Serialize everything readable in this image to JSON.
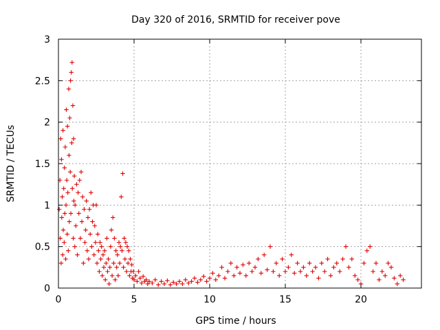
{
  "chart_data": {
    "type": "scatter",
    "title": "Day 320 of 2016, SRMTID for receiver pove",
    "xlabel": "GPS time / hours",
    "ylabel": "SRMTID / TECUs",
    "xlim": [
      0,
      24
    ],
    "ylim": [
      0,
      3
    ],
    "xticks": [
      "0",
      "5",
      "10",
      "15",
      "20"
    ],
    "xtick_values": [
      0,
      5,
      10,
      15,
      20
    ],
    "yticks": [
      "0",
      "0.5",
      "1",
      "1.5",
      "2",
      "2.5",
      "3"
    ],
    "ytick_values": [
      0,
      0.5,
      1,
      1.5,
      2,
      2.5,
      3
    ],
    "grid": true,
    "marker": "plus",
    "color": "#e00000",
    "series": [
      {
        "name": "",
        "points": [
          [
            0.05,
            0.95
          ],
          [
            0.1,
            1.3
          ],
          [
            0.12,
            0.6
          ],
          [
            0.15,
            1.8
          ],
          [
            0.18,
            0.3
          ],
          [
            0.2,
            1.55
          ],
          [
            0.22,
            0.85
          ],
          [
            0.25,
            1.1
          ],
          [
            0.28,
            0.4
          ],
          [
            0.3,
            1.9
          ],
          [
            0.32,
            0.7
          ],
          [
            0.35,
            1.2
          ],
          [
            0.38,
            0.55
          ],
          [
            0.4,
            1.45
          ],
          [
            0.42,
            0.9
          ],
          [
            0.45,
            1.7
          ],
          [
            0.48,
            0.35
          ],
          [
            0.5,
            1.0
          ],
          [
            0.52,
            2.15
          ],
          [
            0.55,
            1.3
          ],
          [
            0.58,
            0.65
          ],
          [
            0.6,
            1.95
          ],
          [
            0.62,
            1.15
          ],
          [
            0.65,
            0.45
          ],
          [
            0.68,
            2.4
          ],
          [
            0.7,
            1.6
          ],
          [
            0.72,
            0.8
          ],
          [
            0.75,
            2.05
          ],
          [
            0.78,
            1.4
          ],
          [
            0.8,
            2.5
          ],
          [
            0.82,
            0.9
          ],
          [
            0.85,
            2.6
          ],
          [
            0.88,
            1.75
          ],
          [
            0.9,
            2.72
          ],
          [
            0.92,
            1.2
          ],
          [
            0.95,
            2.2
          ],
          [
            0.98,
            0.6
          ],
          [
            1.0,
            1.8
          ],
          [
            1.02,
            1.05
          ],
          [
            1.05,
            1.35
          ],
          [
            1.08,
            0.5
          ],
          [
            1.1,
            1.0
          ],
          [
            1.15,
            0.75
          ],
          [
            1.2,
            1.25
          ],
          [
            1.25,
            0.4
          ],
          [
            1.3,
            1.15
          ],
          [
            1.35,
            0.9
          ],
          [
            1.4,
            1.3
          ],
          [
            1.45,
            0.6
          ],
          [
            1.5,
            1.4
          ],
          [
            1.55,
            0.8
          ],
          [
            1.6,
            1.1
          ],
          [
            1.65,
            0.3
          ],
          [
            1.7,
            0.95
          ],
          [
            1.75,
            0.55
          ],
          [
            1.8,
            0.7
          ],
          [
            1.85,
            1.05
          ],
          [
            1.9,
            0.45
          ],
          [
            1.95,
            0.85
          ],
          [
            2.0,
            0.35
          ],
          [
            2.05,
            0.95
          ],
          [
            2.1,
            0.65
          ],
          [
            2.15,
            1.15
          ],
          [
            2.2,
            0.5
          ],
          [
            2.25,
            0.8
          ],
          [
            2.3,
            1.0
          ],
          [
            2.35,
            0.4
          ],
          [
            2.4,
            0.75
          ],
          [
            2.45,
            0.55
          ],
          [
            2.5,
            1.0
          ],
          [
            2.55,
            0.3
          ],
          [
            2.6,
            0.65
          ],
          [
            2.65,
            0.45
          ],
          [
            2.7,
            0.2
          ],
          [
            2.75,
            0.55
          ],
          [
            2.8,
            0.35
          ],
          [
            2.85,
            0.5
          ],
          [
            2.9,
            0.15
          ],
          [
            2.95,
            0.4
          ],
          [
            3.0,
            0.25
          ],
          [
            3.05,
            0.45
          ],
          [
            3.1,
            0.1
          ],
          [
            3.15,
            0.3
          ],
          [
            3.2,
            0.6
          ],
          [
            3.25,
            0.2
          ],
          [
            3.3,
            0.35
          ],
          [
            3.35,
            0.05
          ],
          [
            3.4,
            0.25
          ],
          [
            3.45,
            0.5
          ],
          [
            3.5,
            0.7
          ],
          [
            3.55,
            0.15
          ],
          [
            3.6,
            0.85
          ],
          [
            3.65,
            0.3
          ],
          [
            3.7,
            0.6
          ],
          [
            3.75,
            0.1
          ],
          [
            3.8,
            0.45
          ],
          [
            3.85,
            0.25
          ],
          [
            3.9,
            0.4
          ],
          [
            3.95,
            0.15
          ],
          [
            4.0,
            0.55
          ],
          [
            4.05,
            0.3
          ],
          [
            4.1,
            0.5
          ],
          [
            4.15,
            1.1
          ],
          [
            4.2,
            0.45
          ],
          [
            4.25,
            1.38
          ],
          [
            4.3,
            0.25
          ],
          [
            4.35,
            0.6
          ],
          [
            4.4,
            0.35
          ],
          [
            4.45,
            0.55
          ],
          [
            4.5,
            0.2
          ],
          [
            4.55,
            0.5
          ],
          [
            4.6,
            0.3
          ],
          [
            4.65,
            0.45
          ],
          [
            4.7,
            0.15
          ],
          [
            4.75,
            0.35
          ],
          [
            4.8,
            0.2
          ],
          [
            4.85,
            0.28
          ],
          [
            4.9,
            0.12
          ],
          [
            4.95,
            0.2
          ],
          [
            5.0,
            0.1
          ],
          [
            5.1,
            0.15
          ],
          [
            5.2,
            0.08
          ],
          [
            5.3,
            0.2
          ],
          [
            5.4,
            0.12
          ],
          [
            5.5,
            0.06
          ],
          [
            5.6,
            0.14
          ],
          [
            5.7,
            0.08
          ],
          [
            5.8,
            0.1
          ],
          [
            5.9,
            0.05
          ],
          [
            6.0,
            0.08
          ],
          [
            6.2,
            0.06
          ],
          [
            6.4,
            0.1
          ],
          [
            6.6,
            0.04
          ],
          [
            6.8,
            0.08
          ],
          [
            7.0,
            0.05
          ],
          [
            7.2,
            0.09
          ],
          [
            7.4,
            0.04
          ],
          [
            7.6,
            0.07
          ],
          [
            7.8,
            0.05
          ],
          [
            8.0,
            0.08
          ],
          [
            8.2,
            0.05
          ],
          [
            8.4,
            0.1
          ],
          [
            8.6,
            0.06
          ],
          [
            8.8,
            0.08
          ],
          [
            9.0,
            0.12
          ],
          [
            9.2,
            0.07
          ],
          [
            9.4,
            0.1
          ],
          [
            9.6,
            0.14
          ],
          [
            9.8,
            0.08
          ],
          [
            10.0,
            0.12
          ],
          [
            10.2,
            0.18
          ],
          [
            10.4,
            0.1
          ],
          [
            10.6,
            0.15
          ],
          [
            10.8,
            0.25
          ],
          [
            11.0,
            0.12
          ],
          [
            11.2,
            0.2
          ],
          [
            11.4,
            0.3
          ],
          [
            11.6,
            0.15
          ],
          [
            11.8,
            0.25
          ],
          [
            12.0,
            0.18
          ],
          [
            12.2,
            0.28
          ],
          [
            12.4,
            0.15
          ],
          [
            12.6,
            0.3
          ],
          [
            12.8,
            0.2
          ],
          [
            13.0,
            0.25
          ],
          [
            13.2,
            0.35
          ],
          [
            13.4,
            0.18
          ],
          [
            13.6,
            0.4
          ],
          [
            13.8,
            0.22
          ],
          [
            14.0,
            0.5
          ],
          [
            14.2,
            0.2
          ],
          [
            14.4,
            0.3
          ],
          [
            14.6,
            0.15
          ],
          [
            14.8,
            0.35
          ],
          [
            15.0,
            0.2
          ],
          [
            15.2,
            0.25
          ],
          [
            15.4,
            0.4
          ],
          [
            15.6,
            0.18
          ],
          [
            15.8,
            0.3
          ],
          [
            16.0,
            0.2
          ],
          [
            16.2,
            0.25
          ],
          [
            16.4,
            0.15
          ],
          [
            16.6,
            0.3
          ],
          [
            16.8,
            0.2
          ],
          [
            17.0,
            0.25
          ],
          [
            17.2,
            0.12
          ],
          [
            17.4,
            0.3
          ],
          [
            17.6,
            0.2
          ],
          [
            17.8,
            0.35
          ],
          [
            18.0,
            0.15
          ],
          [
            18.2,
            0.25
          ],
          [
            18.4,
            0.3
          ],
          [
            18.6,
            0.2
          ],
          [
            18.8,
            0.35
          ],
          [
            19.0,
            0.5
          ],
          [
            19.2,
            0.25
          ],
          [
            19.4,
            0.35
          ],
          [
            19.6,
            0.15
          ],
          [
            19.8,
            0.1
          ],
          [
            20.0,
            0.05
          ],
          [
            20.2,
            0.3
          ],
          [
            20.4,
            0.45
          ],
          [
            20.6,
            0.5
          ],
          [
            20.8,
            0.2
          ],
          [
            21.0,
            0.3
          ],
          [
            21.2,
            0.1
          ],
          [
            21.4,
            0.2
          ],
          [
            21.6,
            0.15
          ],
          [
            21.8,
            0.3
          ],
          [
            22.0,
            0.25
          ],
          [
            22.2,
            0.12
          ],
          [
            22.4,
            0.05
          ],
          [
            22.6,
            0.15
          ],
          [
            22.8,
            0.1
          ]
        ]
      }
    ]
  }
}
